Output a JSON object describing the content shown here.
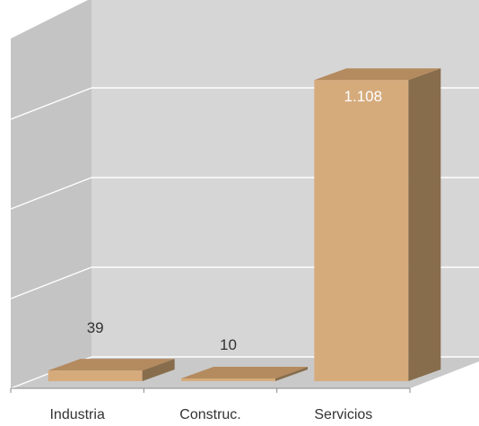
{
  "chart_data": {
    "type": "bar",
    "categories": [
      "Industria",
      "Construc.",
      "Servicios"
    ],
    "values": [
      39,
      10,
      1108
    ],
    "value_labels": [
      "39",
      "10",
      "1.108"
    ],
    "ylim": [
      0,
      1200
    ],
    "grid": true,
    "title": "",
    "xlabel": "",
    "ylabel": "",
    "three_d": true
  },
  "colors": {
    "background": "#ffffff",
    "back_wall": "#d6d6d6",
    "side_wall": "#c4c4c4",
    "floor": "#c9c9c9",
    "grid": "#ffffff",
    "axis": "#8a8a8a",
    "bar_front": "#d6ab7c",
    "bar_side": "#876d4c",
    "bar_top": "#b48a5f",
    "label_text": "#333333",
    "label_text_inside": "#ffffff"
  }
}
